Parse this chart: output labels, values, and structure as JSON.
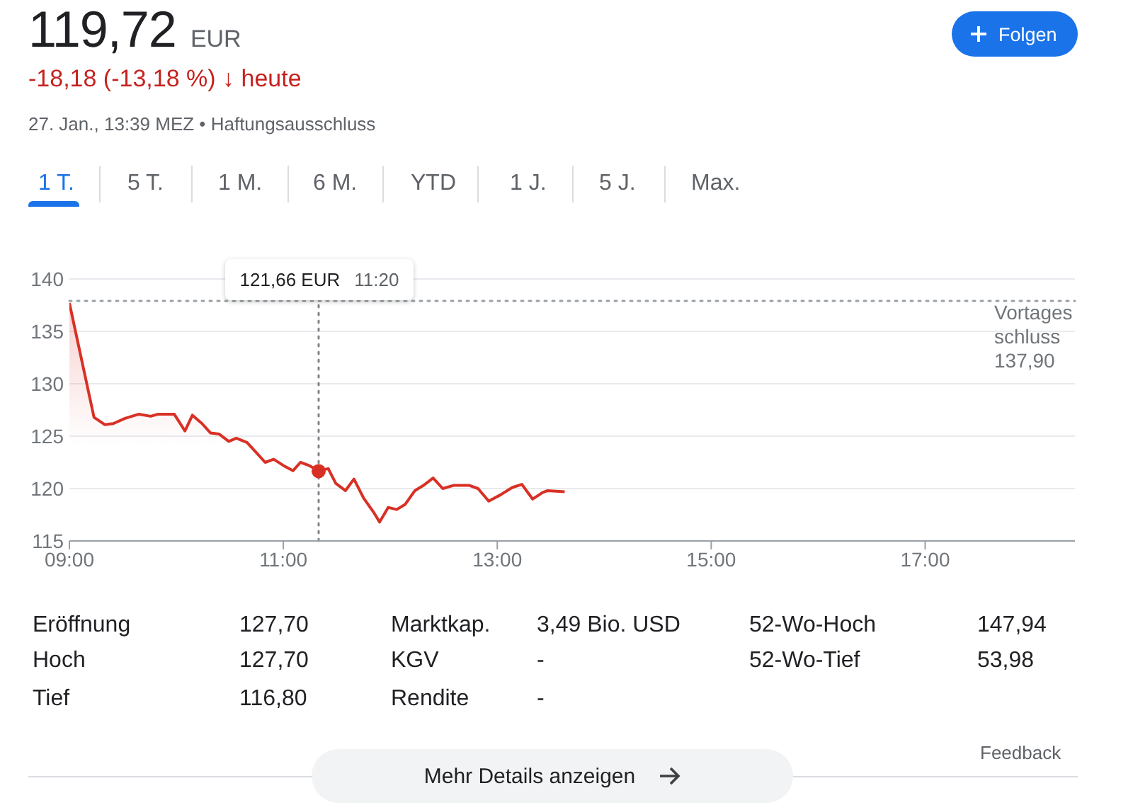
{
  "chart_data": {
    "type": "area",
    "title": "119,72 EUR",
    "subtitle": "-18,18 (-13,18 %) ↓ heute",
    "x": [
      9.0,
      9.23,
      9.33,
      9.41,
      9.52,
      9.65,
      9.76,
      9.83,
      9.98,
      10.08,
      10.15,
      10.24,
      10.32,
      10.4,
      10.49,
      10.56,
      10.66,
      10.75,
      10.83,
      10.91,
      11.0,
      11.09,
      11.16,
      11.24,
      11.33,
      11.42,
      11.49,
      11.58,
      11.66,
      11.75,
      11.84,
      11.9,
      11.98,
      12.06,
      12.14,
      12.23,
      12.31,
      12.4,
      12.49,
      12.59,
      12.74,
      12.82,
      12.92,
      13.03,
      13.14,
      13.23,
      13.33,
      13.42,
      13.47,
      13.63
    ],
    "series": [
      {
        "color": "#d93025",
        "values": [
          137.7,
          126.8,
          126.1,
          126.2,
          126.7,
          127.1,
          126.9,
          127.1,
          127.1,
          125.5,
          127.0,
          126.2,
          125.3,
          125.2,
          124.5,
          124.8,
          124.4,
          123.4,
          122.5,
          122.8,
          122.2,
          121.7,
          122.5,
          122.2,
          121.7,
          121.9,
          120.5,
          119.8,
          120.9,
          119.1,
          117.8,
          116.8,
          118.2,
          118.0,
          118.5,
          119.8,
          120.3,
          121.0,
          120.0,
          120.3,
          120.3,
          120.0,
          118.8,
          119.4,
          120.1,
          120.4,
          119.0,
          119.6,
          119.8,
          119.7
        ]
      },
      {
        "type": "scatter",
        "color": "#d93025",
        "x": [
          11.33
        ],
        "values": [
          121.66
        ]
      }
    ],
    "xlim": [
      9,
      18.4
    ],
    "xticks": [
      {
        "value": 9,
        "label": "09:00"
      },
      {
        "value": 11,
        "label": "11:00"
      },
      {
        "value": 13,
        "label": "13:00"
      },
      {
        "value": 15,
        "label": "15:00"
      },
      {
        "value": 17,
        "label": "17:00"
      }
    ],
    "ylim": [
      115,
      140
    ],
    "yticks": [
      115,
      120,
      125,
      130,
      135,
      140
    ],
    "grid": "y",
    "ref_lines": [
      {
        "axis": "y",
        "value": 137.9,
        "label": "Vortages\nschluss\n137,90",
        "line_style": "dotted",
        "color": "#9aa0a6"
      },
      {
        "axis": "x",
        "value": 11.33,
        "line_style": "dotted",
        "color": "#80868b"
      }
    ],
    "annotations": [
      "27. Jan., 13:39 MEZ • Haftungsausschluss",
      "1 T.",
      "5 T.",
      "1 M.",
      "6 M.",
      "YTD",
      "1 J.",
      "5 J.",
      "Max.",
      "Folgen",
      "Eröffnung",
      "127,70",
      "Hoch",
      "127,70",
      "Tief",
      "116,80",
      "Marktkap.",
      "3,49 Bio. USD",
      "KGV",
      "-",
      "Rendite",
      "-",
      "52-Wo-Hoch",
      "147,94",
      "52-Wo-Tief",
      "53,98",
      "Feedback",
      "Mehr Details anzeigen",
      "121,66 EUR 11:20"
    ]
  }
}
